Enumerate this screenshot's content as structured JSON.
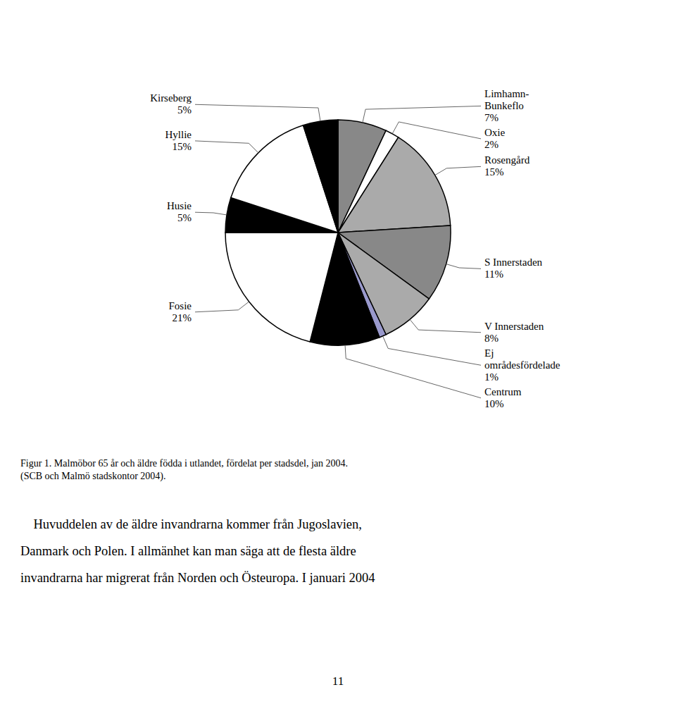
{
  "chart_data": {
    "type": "pie",
    "title": "Figur 1. Malmöbor 65 år och äldre födda i utlandet, fördelat per stadsdel, jan 2004.\n(SCB och Malmö stadskontor 2004).",
    "categories": [
      "Limhamn-\nBunkeflo",
      "Oxie",
      "Rosengård",
      "S Innerstaden",
      "V Innerstaden",
      "Ej\nområdesfördelade",
      "Centrum",
      "Fosie",
      "Husie",
      "Hyllie",
      "Kirseberg"
    ],
    "values": [
      7,
      2,
      15,
      11,
      8,
      1,
      10,
      21,
      5,
      15,
      5
    ],
    "value_labels": [
      "7%",
      "2%",
      "15%",
      "11%",
      "8%",
      "1%",
      "10%",
      "21%",
      "5%",
      "15%",
      "5%"
    ],
    "colors": [
      "#888888",
      "#ffffff",
      "#aaaaaa",
      "#888888",
      "#aaaaaa",
      "#9999cc",
      "#000000",
      "#ffffff",
      "#000000",
      "#ffffff",
      "#000000"
    ],
    "data_labels": true,
    "annotations": [
      "    Huvuddelen av de äldre invandrarna kommer från Jugoslavien,",
      "Danmark och Polen. I allmänhet kan man säga att de flesta äldre",
      "invandrarna har migrerat från Norden och Östeuropa. I januari 2004"
    ],
    "page_number": "11"
  }
}
